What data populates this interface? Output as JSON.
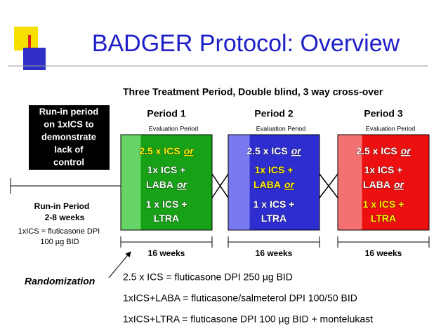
{
  "title": "BADGER Protocol: Overview",
  "subtitle": "Three Treatment Period, Double blind, 3 way cross-over",
  "run_in_box": {
    "lines": [
      "Run-in period",
      "on 1xICS to",
      "demonstrate",
      "lack of",
      "control"
    ]
  },
  "periods": [
    {
      "label": "Period 1",
      "evaluation": "Evaluation Period",
      "duration": "16 weeks",
      "color": "#16a116",
      "strip_color": "#66d466",
      "highlight": 0,
      "options": [
        {
          "lines": [
            {
              "text": "2.5 x ICS",
              "emph": "or"
            }
          ]
        },
        {
          "lines": [
            {
              "text": "1x ICS +"
            },
            {
              "text": "LABA",
              "emph": "or"
            }
          ]
        },
        {
          "lines": [
            {
              "text": "1 x ICS +"
            },
            {
              "text": "LTRA"
            }
          ]
        }
      ]
    },
    {
      "label": "Period 2",
      "evaluation": "Evaluation Period",
      "duration": "16 weeks",
      "color": "#2e2ed0",
      "strip_color": "#7a7af0",
      "highlight": 1,
      "options": [
        {
          "lines": [
            {
              "text": "2.5 x ICS",
              "emph": "or"
            }
          ]
        },
        {
          "lines": [
            {
              "text": "1x ICS +"
            },
            {
              "text": "LABA",
              "emph": "or"
            }
          ]
        },
        {
          "lines": [
            {
              "text": "1 x ICS +"
            },
            {
              "text": "LTRA"
            }
          ]
        }
      ]
    },
    {
      "label": "Period 3",
      "evaluation": "Evaluation Period",
      "duration": "16 weeks",
      "color": "#ee1010",
      "strip_color": "#f57070",
      "highlight": 2,
      "options": [
        {
          "lines": [
            {
              "text": "2.5 x ICS",
              "emph": "or"
            }
          ]
        },
        {
          "lines": [
            {
              "text": "1x ICS +"
            },
            {
              "text": "LABA",
              "emph": "or"
            }
          ]
        },
        {
          "lines": [
            {
              "text": "1 x ICS +"
            },
            {
              "text": "LTRA"
            }
          ]
        }
      ]
    }
  ],
  "run_in_period": {
    "lines": [
      "Run-in Period",
      "2-8 weeks"
    ]
  },
  "ics_note": {
    "lines": [
      "1xICS =  fluticasone DPI",
      "100 µg BID"
    ]
  },
  "randomization": "Randomization",
  "definitions": [
    "2.5 x ICS = fluticasone DPI 250 µg BID",
    "1xICS+LABA = fluticasone/salmeterol DPI 100/50 BID",
    "1xICS+LTRA = fluticasone DPI 100 µg BID + montelukast"
  ]
}
